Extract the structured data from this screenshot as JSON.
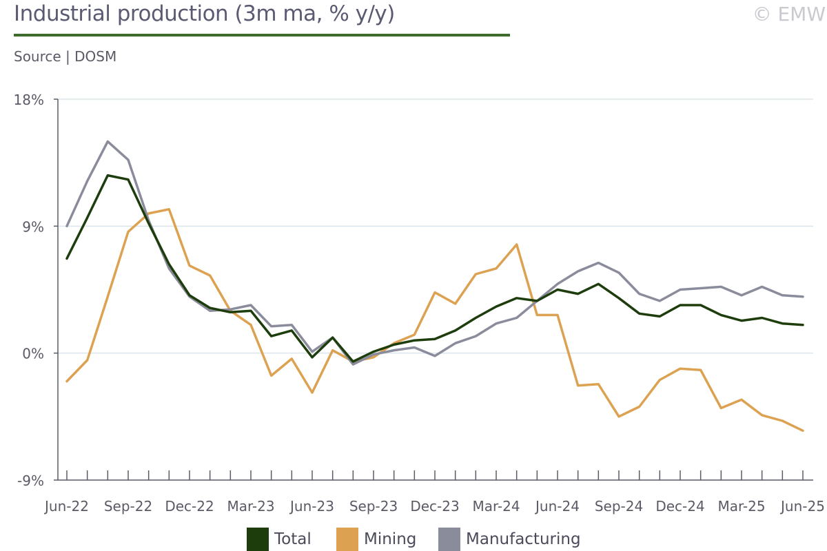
{
  "header": {
    "title": "Industrial production (3m ma, % y/y)",
    "source": "Source | DOSM",
    "copyright": "© EMW"
  },
  "colors": {
    "total": "#1e3d0c",
    "mining": "#dca252",
    "manufacturing": "#8a8c9c",
    "title_rule": "#3d6b2e",
    "grid": "#dce5ec",
    "axis": "#5a5a66"
  },
  "chart_data": {
    "type": "line",
    "title": "Industrial production (3m ma, % y/y)",
    "xlabel": "",
    "ylabel": "",
    "ylim": [
      -9,
      18
    ],
    "y_ticks": [
      "18%",
      "9%",
      "0%",
      "-9%"
    ],
    "y_tick_values": [
      18,
      9,
      0,
      -9
    ],
    "grid": true,
    "legend_position": "bottom",
    "x": [
      "Jun-22",
      "Jul-22",
      "Aug-22",
      "Sep-22",
      "Oct-22",
      "Nov-22",
      "Dec-22",
      "Jan-23",
      "Feb-23",
      "Mar-23",
      "Apr-23",
      "May-23",
      "Jun-23",
      "Jul-23",
      "Aug-23",
      "Sep-23",
      "Oct-23",
      "Nov-23",
      "Dec-23",
      "Jan-24",
      "Feb-24",
      "Mar-24",
      "Apr-24",
      "May-24",
      "Jun-24",
      "Jul-24",
      "Aug-24",
      "Sep-24",
      "Oct-24",
      "Nov-24",
      "Dec-24",
      "Jan-25",
      "Feb-25",
      "Mar-25",
      "Apr-25",
      "May-25",
      "Jun-25"
    ],
    "x_tick_labels": [
      "Jun-22",
      "Sep-22",
      "Dec-22",
      "Mar-23",
      "Jun-23",
      "Sep-23",
      "Dec-23",
      "Mar-24",
      "Jun-24",
      "Sep-24",
      "Dec-24",
      "Mar-25",
      "Jun-25"
    ],
    "series": [
      {
        "name": "Total",
        "color": "#1e3d0c",
        "values": [
          6.7,
          9.6,
          12.6,
          12.3,
          9.2,
          6.3,
          4.1,
          3.2,
          2.9,
          3.0,
          1.2,
          1.6,
          -0.3,
          1.1,
          -0.6,
          0.1,
          0.6,
          0.9,
          1.0,
          1.6,
          2.5,
          3.3,
          3.9,
          3.7,
          4.5,
          4.2,
          4.9,
          3.9,
          2.8,
          2.6,
          3.4,
          3.4,
          2.7,
          2.3,
          2.5,
          2.1,
          2.0
        ]
      },
      {
        "name": "Mining",
        "color": "#dca252",
        "values": [
          -2.0,
          -0.5,
          4.0,
          8.6,
          9.9,
          10.2,
          6.2,
          5.5,
          3.0,
          2.0,
          -1.6,
          -0.4,
          -2.8,
          0.2,
          -0.6,
          -0.3,
          0.7,
          1.3,
          4.3,
          3.5,
          5.6,
          6.0,
          7.7,
          2.7,
          2.7,
          -2.3,
          -2.2,
          -4.5,
          -3.8,
          -1.9,
          -1.1,
          -1.2,
          -3.9,
          -3.3,
          -4.4,
          -4.8,
          -5.5
        ]
      },
      {
        "name": "Manufacturing",
        "color": "#8a8c9c",
        "values": [
          9.0,
          12.2,
          15.0,
          13.7,
          9.4,
          6.0,
          4.0,
          3.0,
          3.1,
          3.4,
          1.9,
          2.0,
          0.1,
          1.1,
          -0.8,
          -0.1,
          0.2,
          0.4,
          -0.2,
          0.7,
          1.2,
          2.1,
          2.5,
          3.7,
          4.9,
          5.8,
          6.4,
          5.7,
          4.2,
          3.7,
          4.5,
          4.6,
          4.7,
          4.1,
          4.7,
          4.1,
          4.0
        ]
      }
    ]
  }
}
